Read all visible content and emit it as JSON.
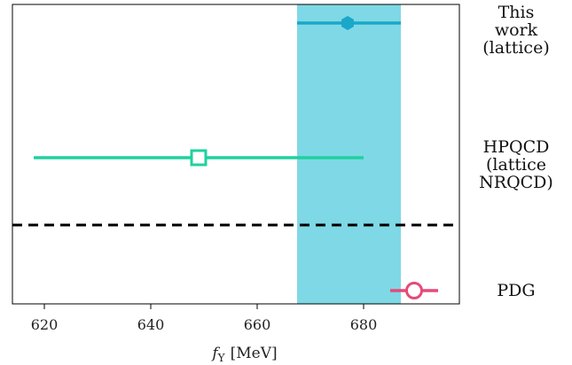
{
  "chart_data": {
    "type": "scatter",
    "xlabel_sym": "f",
    "xlabel_sub": "Υ",
    "xlabel_unit": "[MeV]",
    "xlim": [
      614,
      698
    ],
    "xticks": [
      620,
      640,
      660,
      680
    ],
    "band": {
      "lo": 667.5,
      "hi": 687,
      "color": "#7fd8e6"
    },
    "series": [
      {
        "name": "This work (lattice)",
        "lines": [
          "This",
          "work",
          "(lattice)"
        ],
        "x": 677,
        "xerr_lo": 667.5,
        "xerr_hi": 687,
        "marker": "hexagon-filled",
        "color": "#1aa7c9"
      },
      {
        "name": "HPQCD (lattice NRQCD)",
        "lines": [
          "HPQCD",
          "(lattice",
          "NRQCD)"
        ],
        "x": 649,
        "xerr_lo": 618,
        "xerr_hi": 680,
        "marker": "square-open",
        "color": "#1fd19e"
      },
      {
        "name": "PDG",
        "lines": [
          "PDG"
        ],
        "x": 689.5,
        "xerr_lo": 685,
        "xerr_hi": 694,
        "marker": "circle-open",
        "color": "#e54b78"
      }
    ],
    "divider": "dashed"
  }
}
